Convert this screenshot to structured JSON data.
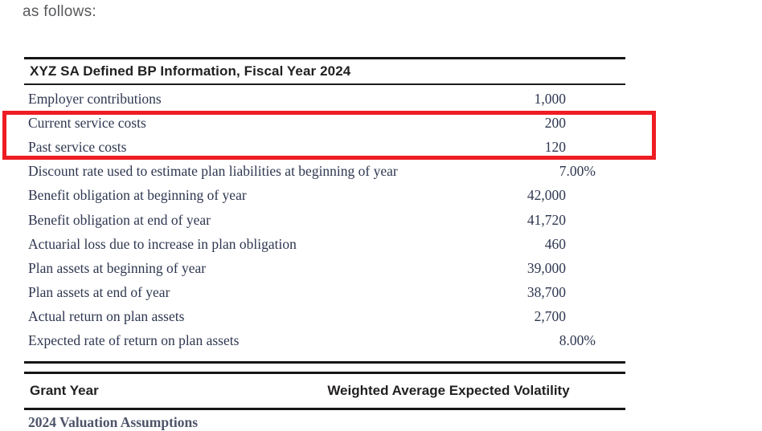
{
  "intro_text": "as follows:",
  "colors": {
    "highlight_red": "#ee1c23",
    "body_text": "#2e3750",
    "header_text": "#221f20",
    "intro_gray": "#58595b"
  },
  "pension_table": {
    "title": "XYZ SA Defined BP Information, Fiscal Year 2024",
    "rows": [
      {
        "label": "Employer contributions",
        "value": "1,000",
        "type": "number",
        "highlighted": false
      },
      {
        "label": "Current service costs",
        "value": "200",
        "type": "number",
        "highlighted": true
      },
      {
        "label": "Past service costs",
        "value": "120",
        "type": "number",
        "highlighted": true
      },
      {
        "label": "Discount rate used to estimate plan liabilities at beginning of year",
        "value": "7.00%",
        "type": "percent",
        "highlighted": false
      },
      {
        "label": "Benefit obligation at beginning of year",
        "value": "42,000",
        "type": "number",
        "highlighted": false
      },
      {
        "label": "Benefit obligation at end of year",
        "value": "41,720",
        "type": "number",
        "highlighted": false
      },
      {
        "label": "Actuarial loss due to increase in plan obligation",
        "value": "460",
        "type": "number",
        "highlighted": false
      },
      {
        "label": "Plan assets at beginning of year",
        "value": "39,000",
        "type": "number",
        "highlighted": false
      },
      {
        "label": "Plan assets at end of year",
        "value": "38,700",
        "type": "number",
        "highlighted": false
      },
      {
        "label": "Actual return on plan assets",
        "value": "2,700",
        "type": "number",
        "highlighted": false
      },
      {
        "label": "Expected rate of return on plan assets",
        "value": "8.00%",
        "type": "percent",
        "highlighted": false
      }
    ]
  },
  "volatility_table": {
    "col1_header": "Grant Year",
    "col2_header": "Weighted Average Expected Volatility",
    "partial_row_label": "2024 Valuation Assumptions"
  }
}
